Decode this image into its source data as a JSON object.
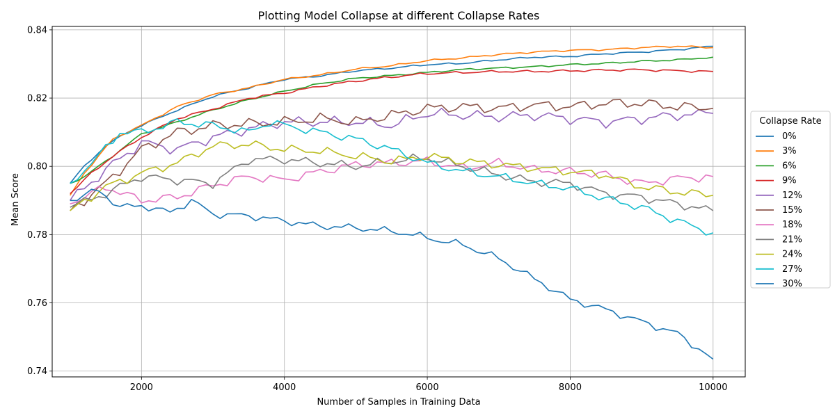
{
  "chart_data": {
    "type": "line",
    "title": "Plotting Model Collapse at different Collapse Rates",
    "xlabel": "Number of Samples in Training Data",
    "ylabel": "Mean Score",
    "xlim": [
      750,
      10450
    ],
    "ylim": [
      0.7383,
      0.841
    ],
    "xticks": [
      2000,
      4000,
      6000,
      8000,
      10000
    ],
    "xtick_labels": [
      "2000",
      "4000",
      "6000",
      "8000",
      "10000"
    ],
    "yticks": [
      0.74,
      0.76,
      0.78,
      0.8,
      0.82,
      0.84
    ],
    "ytick_labels": [
      "0.74",
      "0.76",
      "0.78",
      "0.80",
      "0.82",
      "0.84"
    ],
    "grid": true,
    "legend": {
      "title": "Collapse Rate",
      "placement": "right, outside plot"
    },
    "x": {
      "start": 1000,
      "end": 10000,
      "step": 100
    },
    "series": [
      {
        "name": "0%",
        "color": "#1f77b4",
        "anchors": [
          [
            1000,
            0.795
          ],
          [
            1200,
            0.8
          ],
          [
            1500,
            0.806
          ],
          [
            1800,
            0.81
          ],
          [
            2000,
            0.812
          ],
          [
            2500,
            0.8165
          ],
          [
            3000,
            0.8205
          ],
          [
            3500,
            0.823
          ],
          [
            4000,
            0.8255
          ],
          [
            4500,
            0.8265
          ],
          [
            5000,
            0.828
          ],
          [
            5500,
            0.8288
          ],
          [
            6000,
            0.8298
          ],
          [
            6500,
            0.8302
          ],
          [
            7000,
            0.8312
          ],
          [
            7500,
            0.832
          ],
          [
            8000,
            0.8322
          ],
          [
            8500,
            0.833
          ],
          [
            9000,
            0.8335
          ],
          [
            9500,
            0.8342
          ],
          [
            10000,
            0.8352
          ]
        ],
        "noise": 0.0003
      },
      {
        "name": "3%",
        "color": "#ff7f0e",
        "anchors": [
          [
            1000,
            0.7915
          ],
          [
            1200,
            0.798
          ],
          [
            1400,
            0.803
          ],
          [
            1600,
            0.808
          ],
          [
            2000,
            0.812
          ],
          [
            2500,
            0.8175
          ],
          [
            3000,
            0.821
          ],
          [
            3500,
            0.823
          ],
          [
            4000,
            0.8255
          ],
          [
            4500,
            0.8268
          ],
          [
            5000,
            0.8285
          ],
          [
            5500,
            0.8295
          ],
          [
            6000,
            0.831
          ],
          [
            6500,
            0.8318
          ],
          [
            7000,
            0.8328
          ],
          [
            7500,
            0.8335
          ],
          [
            8000,
            0.834
          ],
          [
            8500,
            0.8342
          ],
          [
            9000,
            0.8348
          ],
          [
            9500,
            0.8352
          ],
          [
            10000,
            0.8348
          ]
        ],
        "noise": 0.0003
      },
      {
        "name": "6%",
        "color": "#2ca02c",
        "anchors": [
          [
            1000,
            0.795
          ],
          [
            1200,
            0.797
          ],
          [
            1500,
            0.8015
          ],
          [
            2000,
            0.8095
          ],
          [
            2500,
            0.813
          ],
          [
            3000,
            0.8165
          ],
          [
            3500,
            0.8195
          ],
          [
            4000,
            0.822
          ],
          [
            4500,
            0.8242
          ],
          [
            5000,
            0.8258
          ],
          [
            5500,
            0.8266
          ],
          [
            6000,
            0.8275
          ],
          [
            6500,
            0.8284
          ],
          [
            7000,
            0.8288
          ],
          [
            7500,
            0.8292
          ],
          [
            8000,
            0.8298
          ],
          [
            8500,
            0.8302
          ],
          [
            9000,
            0.8308
          ],
          [
            9500,
            0.8312
          ],
          [
            10000,
            0.832
          ]
        ],
        "noise": 0.0003
      },
      {
        "name": "9%",
        "color": "#d62728",
        "anchors": [
          [
            1000,
            0.792
          ],
          [
            1300,
            0.798
          ],
          [
            1600,
            0.803
          ],
          [
            2000,
            0.8085
          ],
          [
            2500,
            0.814
          ],
          [
            3000,
            0.8168
          ],
          [
            3500,
            0.82
          ],
          [
            4000,
            0.8215
          ],
          [
            4500,
            0.8235
          ],
          [
            5000,
            0.825
          ],
          [
            5500,
            0.8262
          ],
          [
            6000,
            0.8272
          ],
          [
            6500,
            0.8275
          ],
          [
            7000,
            0.8278
          ],
          [
            7500,
            0.8278
          ],
          [
            8000,
            0.828
          ],
          [
            8500,
            0.8282
          ],
          [
            9000,
            0.8283
          ],
          [
            9500,
            0.828
          ],
          [
            10000,
            0.8278
          ]
        ],
        "noise": 0.0004
      },
      {
        "name": "12%",
        "color": "#9467bd",
        "anchors": [
          [
            1000,
            0.79
          ],
          [
            1500,
            0.799
          ],
          [
            2000,
            0.807
          ],
          [
            2500,
            0.805
          ],
          [
            3000,
            0.8085
          ],
          [
            3500,
            0.811
          ],
          [
            4000,
            0.813
          ],
          [
            4500,
            0.813
          ],
          [
            5000,
            0.813
          ],
          [
            5500,
            0.812
          ],
          [
            6000,
            0.8155
          ],
          [
            6500,
            0.815
          ],
          [
            7000,
            0.8145
          ],
          [
            7500,
            0.815
          ],
          [
            8000,
            0.814
          ],
          [
            8500,
            0.813
          ],
          [
            9000,
            0.814
          ],
          [
            9500,
            0.815
          ],
          [
            10000,
            0.8155
          ]
        ],
        "noise": 0.0018
      },
      {
        "name": "15%",
        "color": "#8c564b",
        "anchors": [
          [
            1000,
            0.787
          ],
          [
            1500,
            0.795
          ],
          [
            2000,
            0.805
          ],
          [
            2500,
            0.81
          ],
          [
            3000,
            0.812
          ],
          [
            3500,
            0.8125
          ],
          [
            4000,
            0.813
          ],
          [
            4500,
            0.814
          ],
          [
            5000,
            0.813
          ],
          [
            5500,
            0.815
          ],
          [
            6000,
            0.817
          ],
          [
            6500,
            0.8175
          ],
          [
            7000,
            0.817
          ],
          [
            7500,
            0.818
          ],
          [
            8000,
            0.8175
          ],
          [
            8500,
            0.8185
          ],
          [
            9000,
            0.8185
          ],
          [
            9500,
            0.8175
          ],
          [
            10000,
            0.817
          ]
        ],
        "noise": 0.0018
      },
      {
        "name": "18%",
        "color": "#e377c2",
        "anchors": [
          [
            1000,
            0.789
          ],
          [
            1500,
            0.794
          ],
          [
            2000,
            0.79
          ],
          [
            2500,
            0.791
          ],
          [
            3000,
            0.7945
          ],
          [
            3500,
            0.797
          ],
          [
            4000,
            0.796
          ],
          [
            4500,
            0.7985
          ],
          [
            5000,
            0.8005
          ],
          [
            5500,
            0.801
          ],
          [
            6000,
            0.8015
          ],
          [
            6500,
            0.7995
          ],
          [
            7000,
            0.801
          ],
          [
            7500,
            0.799
          ],
          [
            8000,
            0.7985
          ],
          [
            8500,
            0.7975
          ],
          [
            9000,
            0.795
          ],
          [
            9500,
            0.7965
          ],
          [
            10000,
            0.797
          ]
        ],
        "noise": 0.0015
      },
      {
        "name": "21%",
        "color": "#7f7f7f",
        "anchors": [
          [
            1000,
            0.788
          ],
          [
            1500,
            0.792
          ],
          [
            2000,
            0.797
          ],
          [
            2500,
            0.796
          ],
          [
            3000,
            0.795
          ],
          [
            3500,
            0.802
          ],
          [
            4000,
            0.802
          ],
          [
            4500,
            0.801
          ],
          [
            5000,
            0.8
          ],
          [
            5500,
            0.8015
          ],
          [
            6000,
            0.8025
          ],
          [
            6500,
            0.8
          ],
          [
            7000,
            0.7975
          ],
          [
            7500,
            0.7955
          ],
          [
            8000,
            0.795
          ],
          [
            8500,
            0.792
          ],
          [
            9000,
            0.791
          ],
          [
            9500,
            0.789
          ],
          [
            10000,
            0.787
          ]
        ],
        "noise": 0.0015
      },
      {
        "name": "24%",
        "color": "#bcbd22",
        "anchors": [
          [
            1000,
            0.787
          ],
          [
            1500,
            0.794
          ],
          [
            2000,
            0.798
          ],
          [
            2500,
            0.801
          ],
          [
            3000,
            0.806
          ],
          [
            3500,
            0.8065
          ],
          [
            4000,
            0.805
          ],
          [
            4500,
            0.8045
          ],
          [
            5000,
            0.803
          ],
          [
            5500,
            0.8015
          ],
          [
            6000,
            0.803
          ],
          [
            6500,
            0.8015
          ],
          [
            7000,
            0.8005
          ],
          [
            7500,
            0.7995
          ],
          [
            8000,
            0.7985
          ],
          [
            8500,
            0.7975
          ],
          [
            9000,
            0.794
          ],
          [
            9500,
            0.7925
          ],
          [
            10000,
            0.7915
          ]
        ],
        "noise": 0.0015
      },
      {
        "name": "27%",
        "color": "#17becf",
        "anchors": [
          [
            1000,
            0.795
          ],
          [
            1400,
            0.803
          ],
          [
            1700,
            0.81
          ],
          [
            2000,
            0.81
          ],
          [
            2500,
            0.813
          ],
          [
            3000,
            0.812
          ],
          [
            3500,
            0.81
          ],
          [
            3800,
            0.813
          ],
          [
            4000,
            0.812
          ],
          [
            4500,
            0.81
          ],
          [
            5000,
            0.808
          ],
          [
            5500,
            0.805
          ],
          [
            6000,
            0.801
          ],
          [
            6500,
            0.7985
          ],
          [
            7000,
            0.797
          ],
          [
            7500,
            0.795
          ],
          [
            8000,
            0.7935
          ],
          [
            8500,
            0.7905
          ],
          [
            9000,
            0.788
          ],
          [
            9500,
            0.784
          ],
          [
            10000,
            0.7805
          ]
        ],
        "noise": 0.0014
      },
      {
        "name": "30%",
        "color": "#1f77b4",
        "anchors": [
          [
            1000,
            0.79
          ],
          [
            1400,
            0.793
          ],
          [
            1700,
            0.788
          ],
          [
            2000,
            0.7885
          ],
          [
            2400,
            0.7865
          ],
          [
            2700,
            0.79
          ],
          [
            3000,
            0.786
          ],
          [
            3500,
            0.7855
          ],
          [
            4000,
            0.784
          ],
          [
            4500,
            0.7825
          ],
          [
            5000,
            0.782
          ],
          [
            5500,
            0.781
          ],
          [
            5800,
            0.78
          ],
          [
            6000,
            0.779
          ],
          [
            6500,
            0.777
          ],
          [
            7000,
            0.773
          ],
          [
            7500,
            0.767
          ],
          [
            8000,
            0.761
          ],
          [
            8500,
            0.758
          ],
          [
            9000,
            0.7545
          ],
          [
            9500,
            0.751
          ],
          [
            10000,
            0.7435
          ]
        ],
        "noise": 0.0012
      }
    ]
  }
}
